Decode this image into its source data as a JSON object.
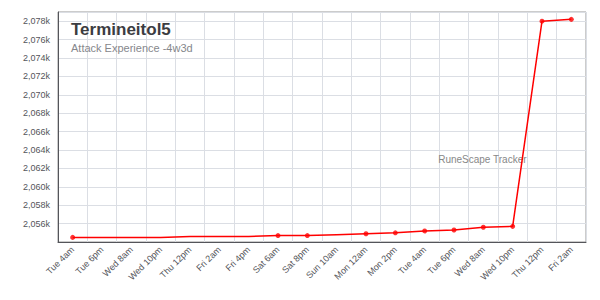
{
  "chart_data": {
    "type": "line",
    "title": "Termineitol5",
    "subtitle": "Attack Experience -4w3d",
    "annotations": [
      "RuneScape Tracker"
    ],
    "categories": [
      "Tue 4am",
      "Tue 6pm",
      "Wed 8am",
      "Wed 10pm",
      "Thu 12pm",
      "Fri 2am",
      "Fri 4pm",
      "Sat 6am",
      "Sat 8pm",
      "Sun 10am",
      "Mon 12am",
      "Mon 2pm",
      "Tue 4am",
      "Tue 6pm",
      "Wed 8am",
      "Wed 10pm",
      "Thu 12pm",
      "Fri 2am"
    ],
    "series": [
      {
        "type": "line",
        "color": "#ff0000",
        "values": [
          2054500,
          2054500,
          2054500,
          2054500,
          2054600,
          2054600,
          2054600,
          2054700,
          2054700,
          2054800,
          2054900,
          2055000,
          2055200,
          2055300,
          2055600,
          2055700,
          2078000,
          2078200
        ]
      },
      {
        "type": "scatter",
        "color": "#ff0000",
        "marker": "circle",
        "values": [
          2054500,
          null,
          null,
          null,
          null,
          null,
          null,
          2054700,
          2054700,
          null,
          2054900,
          2055000,
          2055200,
          2055300,
          2055600,
          2055700,
          2078000,
          2078200
        ]
      }
    ],
    "ylim": [
      2054000,
      2079000
    ],
    "yticks": [
      {
        "value": 2056000,
        "label": "2,056k"
      },
      {
        "value": 2058000,
        "label": "2,058k"
      },
      {
        "value": 2060000,
        "label": "2,060k"
      },
      {
        "value": 2062000,
        "label": "2,062k"
      },
      {
        "value": 2064000,
        "label": "2,064k"
      },
      {
        "value": 2066000,
        "label": "2,066k"
      },
      {
        "value": 2068000,
        "label": "2,068k"
      },
      {
        "value": 2070000,
        "label": "2,070k"
      },
      {
        "value": 2072000,
        "label": "2,072k"
      },
      {
        "value": 2074000,
        "label": "2,074k"
      },
      {
        "value": 2076000,
        "label": "2,076k"
      },
      {
        "value": 2078000,
        "label": "2,078k"
      }
    ],
    "grid": true
  }
}
